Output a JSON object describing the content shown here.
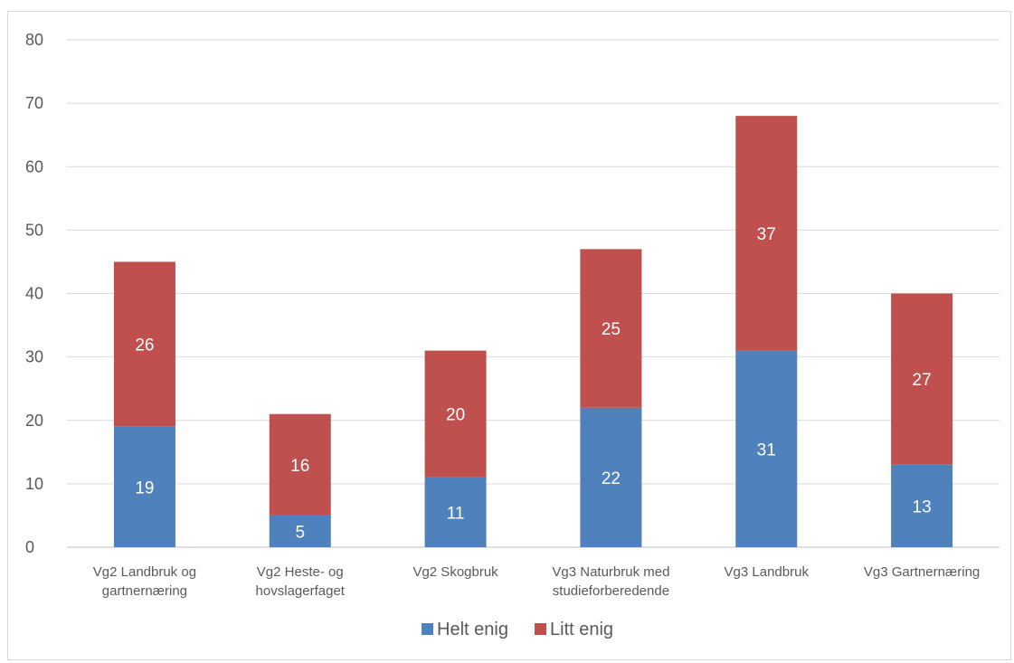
{
  "chart_data": {
    "type": "bar",
    "stacked": true,
    "categories": [
      [
        "Vg2 Landbruk og",
        "gartnernæring"
      ],
      [
        "Vg2 Heste- og",
        "hovslagerfaget"
      ],
      [
        "Vg2 Skogbruk"
      ],
      [
        "Vg3 Naturbruk med",
        "studieforberedende"
      ],
      [
        "Vg3 Landbruk"
      ],
      [
        "Vg3 Gartnernæring"
      ]
    ],
    "series": [
      {
        "name": "Helt enig",
        "color": "#4F81BD",
        "values": [
          19,
          5,
          11,
          22,
          31,
          13
        ]
      },
      {
        "name": "Litt enig",
        "color": "#C0504D",
        "values": [
          26,
          16,
          20,
          25,
          37,
          27
        ]
      }
    ],
    "ylim": [
      0,
      80
    ],
    "yticks": [
      "0",
      "10",
      "20",
      "30",
      "40",
      "50",
      "60",
      "70",
      "80"
    ],
    "grid": true,
    "legend": "bottom-center"
  }
}
